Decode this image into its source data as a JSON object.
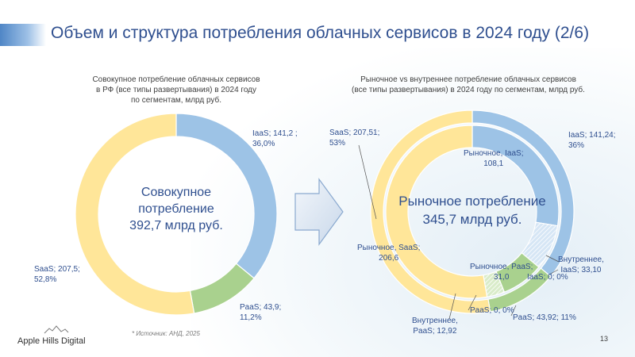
{
  "title": "Объем и структура потребления облачных сервисов в 2024 году (2/6)",
  "left": {
    "subtitle": "Совокупное потребление облачных сервисов\nв РФ (все типы развертывания) в 2024 году\nпо сегментам, млрд руб.",
    "center": "Совокупное\nпотребление\n392,7 млрд руб.",
    "labels": {
      "iaas": "IaaS;  141,2 ;\n36,0%",
      "paas": "PaaS;  43,9;\n11,2%",
      "saas": "SaaS;  207,5;\n52,8%"
    }
  },
  "right": {
    "subtitle": "Рыночное vs внутреннее потребление облачных сервисов\n(все типы развертывания) в 2024 году по сегментам, млрд руб.",
    "center": "Рыночное потребление\n345,7 млрд руб.",
    "labels": {
      "outer_saas": "SaaS;  207,51;\n53%",
      "outer_iaas": "IaaS;  141,24;\n36%",
      "outer_paas": "PaaS;  43,92; 11%",
      "market_iaas": "Рыночное, IaaS;\n108,1",
      "internal_iaas": "Внутреннее,\nIaaS;  33,10",
      "market_saas": "Рыночное, SaaS;\n206,6",
      "market_paas": "Рыночное, PaaS;\n31,0",
      "iaas_zero": "IaaS; 0; 0%",
      "paas_zero": "PaaS; 0; 0%",
      "internal_paas": "Внутреннее,\nPaaS;  12,92"
    }
  },
  "source": "* Источник: АНД, 2025",
  "logo_text": "Apple Hills Digital",
  "page_number": "13",
  "colors": {
    "iaas": "#9dc3e6",
    "paas": "#a9d18e",
    "saas": "#ffe699",
    "internal_iaas": "#d6e6f5",
    "internal_paas": "#d9ecc9",
    "title": "#2f4f8f"
  },
  "chart_data": [
    {
      "type": "pie",
      "subtitle": "Совокупное потребление облачных сервисов в РФ (все типы развертывания) в 2024 году по сегментам, млрд руб.",
      "categories": [
        "IaaS",
        "PaaS",
        "SaaS"
      ],
      "values": [
        141.2,
        43.9,
        207.5
      ],
      "percent": [
        36.0,
        11.2,
        52.8
      ],
      "total": 392.7,
      "unit": "млрд руб."
    },
    {
      "type": "pie",
      "subtitle": "Рыночное vs внутреннее потребление облачных сервисов (все типы развертывания) в 2024 году по сегментам, млрд руб.",
      "series": [
        {
          "name": "outer",
          "categories": [
            "IaaS",
            "PaaS",
            "SaaS"
          ],
          "values": [
            141.24,
            43.92,
            207.51
          ],
          "percent": [
            36,
            11,
            53
          ]
        },
        {
          "name": "inner",
          "categories": [
            "Рыночное, IaaS",
            "Внутреннее, IaaS",
            "Рыночное, PaaS",
            "Внутреннее, PaaS",
            "Рыночное, SaaS"
          ],
          "values": [
            108.1,
            33.1,
            31.0,
            12.92,
            206.6
          ]
        }
      ],
      "market_total": 345.7,
      "unit": "млрд руб."
    }
  ]
}
